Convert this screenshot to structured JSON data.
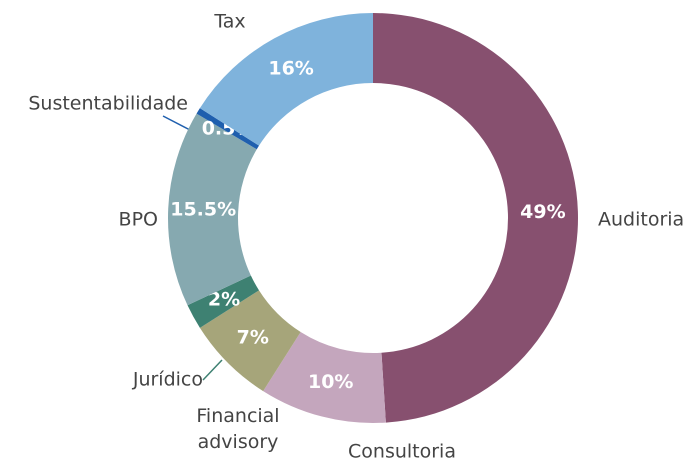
{
  "chart_data": {
    "type": "donut",
    "categories": [
      "Auditoria",
      "Consultoria",
      "Financial advisory",
      "Jurídico",
      "BPO",
      "Sustentabilidade",
      "Tax"
    ],
    "values": [
      49,
      10,
      7,
      2,
      15.5,
      0.5,
      16
    ],
    "value_labels": [
      "49%",
      "10%",
      "7%",
      "2%",
      "15.5%",
      "0.5%",
      "16%"
    ],
    "colors": [
      "#87506f",
      "#c4a6bd",
      "#a6a57a",
      "#3e8172",
      "#86a9b0",
      "#1f5fae",
      "#7fb3dc"
    ]
  }
}
